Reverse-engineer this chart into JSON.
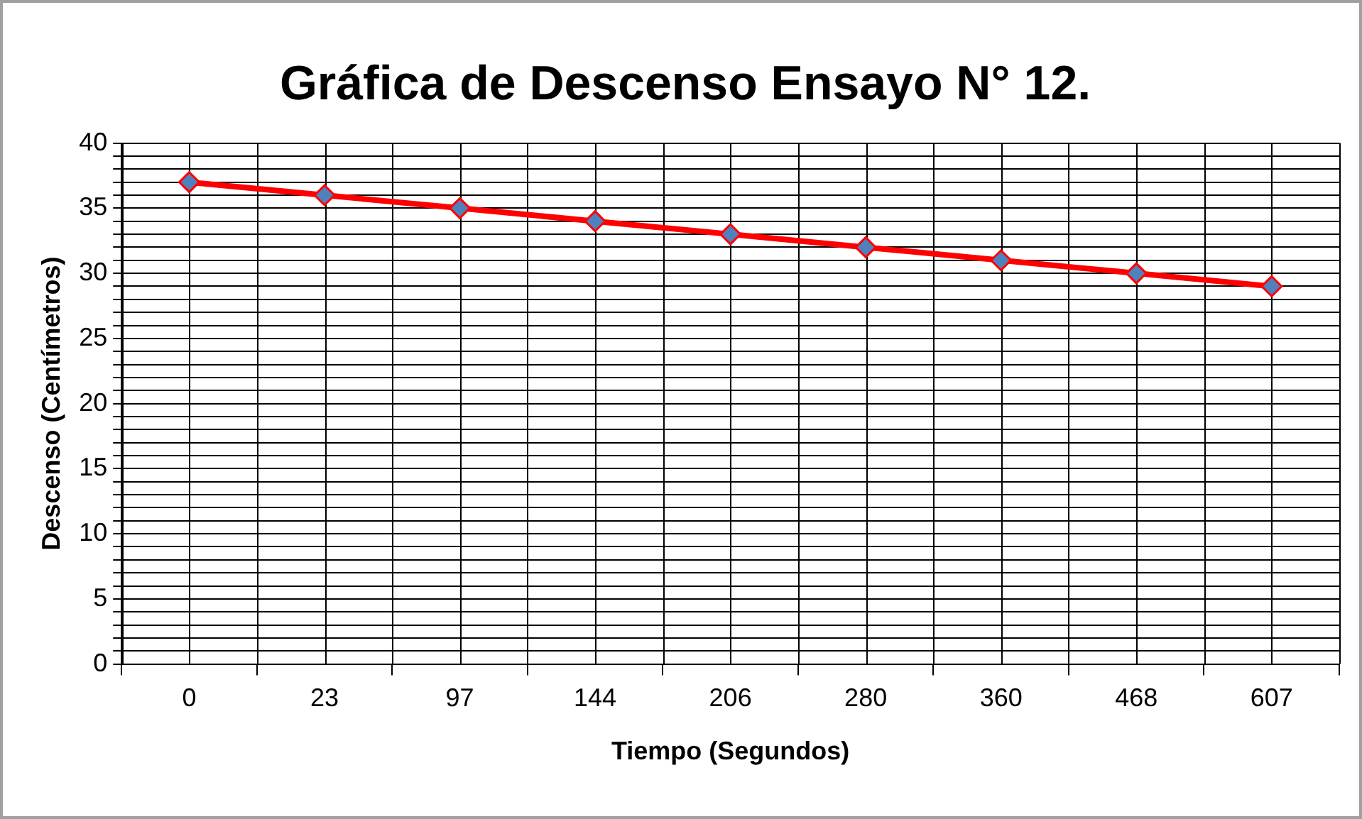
{
  "chart_data": {
    "type": "line",
    "title": "Gráfica de Descenso Ensayo N° 12.",
    "xlabel": "Tiempo (Segundos)",
    "ylabel": "Descenso (Centímetros)",
    "categories": [
      "0",
      "23",
      "97",
      "144",
      "206",
      "280",
      "360",
      "468",
      "607"
    ],
    "series": [
      {
        "color": "#ff0000",
        "values": [
          37,
          36,
          35,
          34,
          33,
          32,
          31,
          30,
          29
        ]
      }
    ],
    "ylim": [
      0,
      40
    ],
    "yticks": [
      0,
      {
        "value": 1,
        "label": null
      },
      {
        "value": 2,
        "label": null
      },
      {
        "value": 3,
        "label": null
      },
      {
        "value": 4,
        "label": null
      },
      5,
      {
        "value": 6,
        "label": null
      },
      {
        "value": 7,
        "label": null
      },
      {
        "value": 8,
        "label": null
      },
      {
        "value": 9,
        "label": null
      },
      10,
      {
        "value": 11,
        "label": null
      },
      {
        "value": 12,
        "label": null
      },
      {
        "value": 13,
        "label": null
      },
      {
        "value": 14,
        "label": null
      },
      15,
      {
        "value": 16,
        "label": null
      },
      {
        "value": 17,
        "label": null
      },
      {
        "value": 18,
        "label": null
      },
      {
        "value": 19,
        "label": null
      },
      20,
      {
        "value": 21,
        "label": null
      },
      {
        "value": 22,
        "label": null
      },
      {
        "value": 23,
        "label": null
      },
      {
        "value": 24,
        "label": null
      },
      25,
      {
        "value": 26,
        "label": null
      },
      {
        "value": 27,
        "label": null
      },
      {
        "value": 28,
        "label": null
      },
      {
        "value": 29,
        "label": null
      },
      30,
      {
        "value": 31,
        "label": null
      },
      {
        "value": 32,
        "label": null
      },
      {
        "value": 33,
        "label": null
      },
      {
        "value": 34,
        "label": null
      },
      35,
      {
        "value": 36,
        "label": null
      },
      {
        "value": 37,
        "label": null
      },
      {
        "value": 38,
        "label": null
      },
      {
        "value": 39,
        "label": null
      },
      40
    ],
    "grid": true,
    "legend": false,
    "marker": "diamond",
    "line_style": "solid"
  }
}
